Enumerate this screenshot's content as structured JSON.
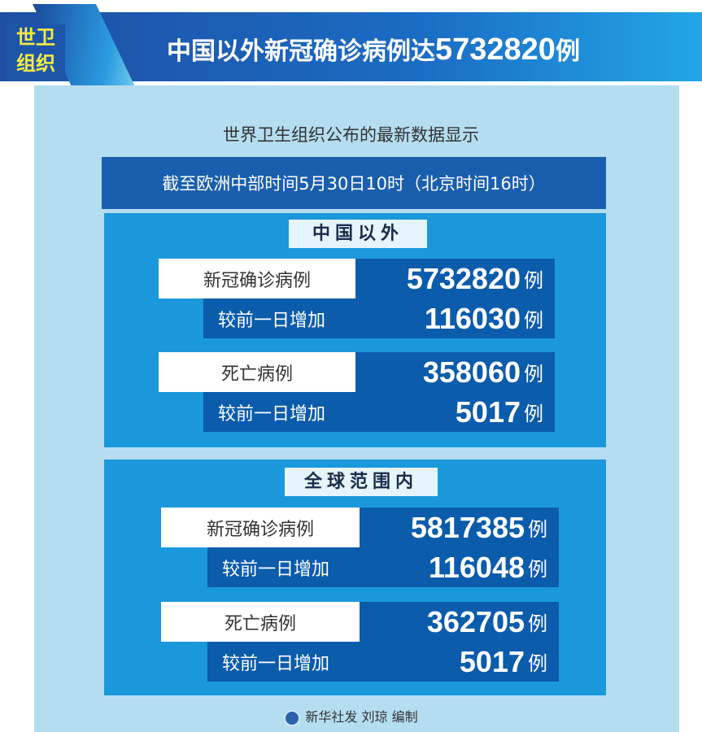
{
  "header": {
    "badge": [
      "世卫",
      "组织"
    ],
    "title_text": "中国以外新冠确诊病例达",
    "title_number": "5732820",
    "title_unit": "例"
  },
  "subtitle": "世界卫生组织公布的最新数据显示",
  "date_line": "截至欧洲中部时间5月30日10时（北京时间16时）",
  "sections": [
    {
      "label": "中国以外",
      "rows": [
        {
          "label": "新冠确诊病例",
          "value": "5732820",
          "unit": "例"
        },
        {
          "label": "较前一日增加",
          "value": "116030",
          "unit": "例"
        },
        {
          "label": "死亡病例",
          "value": "358060",
          "unit": "例"
        },
        {
          "label": "较前一日增加",
          "value": "5017",
          "unit": "例"
        }
      ]
    },
    {
      "label": "全球范围内",
      "rows": [
        {
          "label": "新冠确诊病例",
          "value": "5817385",
          "unit": "例"
        },
        {
          "label": "较前一日增加",
          "value": "116048",
          "unit": "例"
        },
        {
          "label": "死亡病例",
          "value": "362705",
          "unit": "例"
        },
        {
          "label": "较前一日增加",
          "value": "5017",
          "unit": "例"
        }
      ]
    }
  ],
  "footer": "新华社发 刘琼 编制",
  "colors": {
    "banner": "#1b6cc4",
    "badge_text": "#f2ec45",
    "panel": "#b4ddef",
    "section": "#1b98dc",
    "value_bg": "#0b5cab"
  }
}
